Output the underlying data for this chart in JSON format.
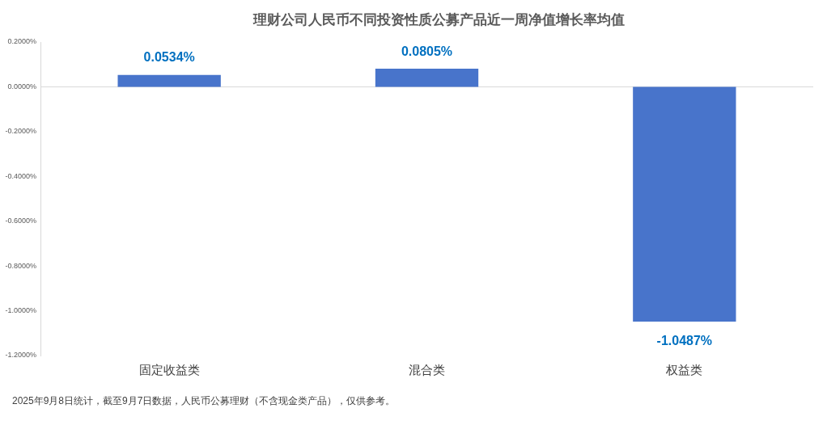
{
  "chart_data": {
    "type": "bar",
    "title": "理财公司人民币不同投资性质公募产品近一周净值增长率均值",
    "categories": [
      "固定收益类",
      "混合类",
      "权益类"
    ],
    "values": [
      0.0534,
      0.0805,
      -1.0487
    ],
    "value_labels": [
      "0.0534%",
      "0.0805%",
      "-1.0487%"
    ],
    "color": "#4874cb",
    "ylim": [
      -1.2,
      0.2
    ],
    "yticks": [
      {
        "value": 0.2,
        "label": "0.2000%"
      },
      {
        "value": 0,
        "label": "0.0000%"
      },
      {
        "value": -0.2,
        "label": "-0.2000%"
      },
      {
        "value": -0.4,
        "label": "-0.4000%"
      },
      {
        "value": -0.6,
        "label": "-0.6000%"
      },
      {
        "value": -0.8,
        "label": "-0.8000%"
      },
      {
        "value": -1,
        "label": "-1.0000%"
      },
      {
        "value": -1.2,
        "label": "-1.2000%"
      }
    ],
    "annotations": [
      "2025年9月8日统计，截至9月7日数据，人民币公募理财（不含现金类产品），仅供参考。"
    ]
  }
}
